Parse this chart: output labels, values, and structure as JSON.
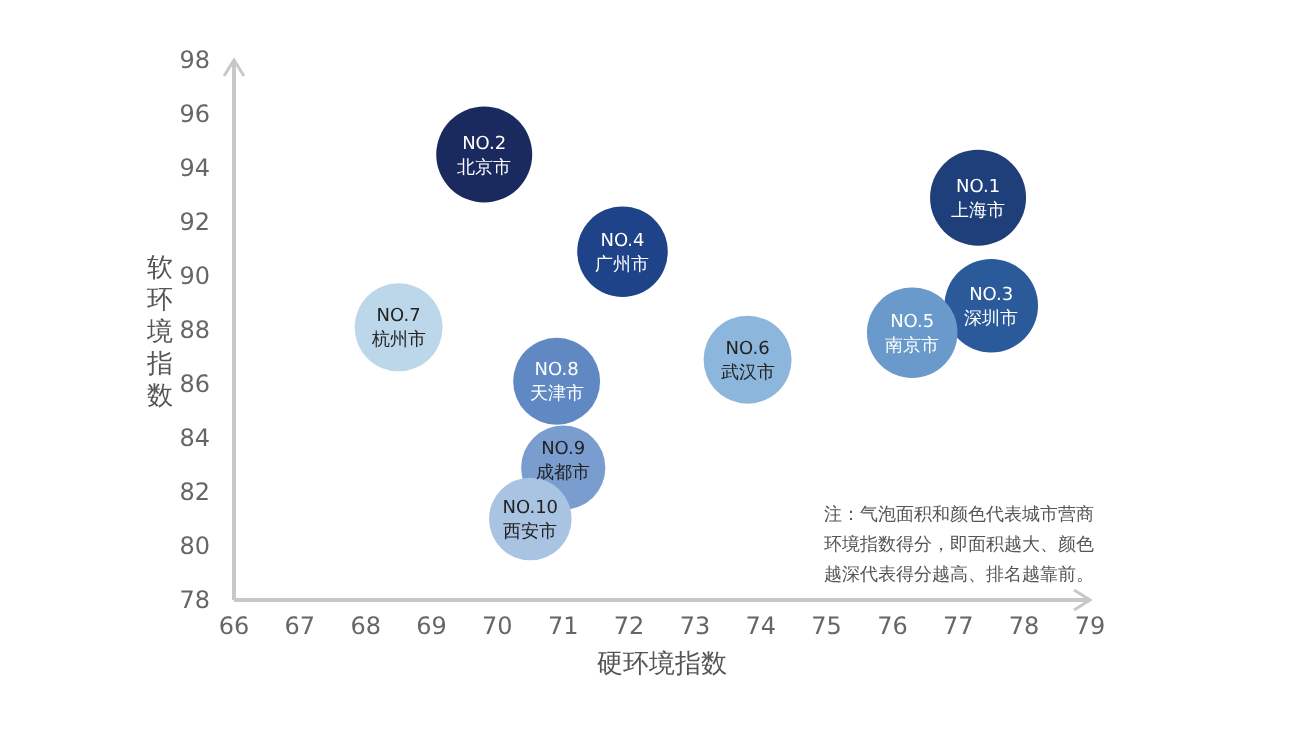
{
  "chart_data": {
    "type": "bubble",
    "xlabel": "硬环境指数",
    "ylabel": "软环境指数",
    "annotations": [
      "注：气泡面积和颜色代表城市营商环境指数得分，即面积越大、颜色越深代表得分越高、排名越靠前。"
    ],
    "xlim": [
      66,
      79
    ],
    "ylim": [
      78,
      98
    ],
    "xticks": [
      66,
      67,
      68,
      69,
      70,
      71,
      72,
      73,
      74,
      75,
      76,
      77,
      78,
      79
    ],
    "yticks": [
      78,
      80,
      82,
      84,
      86,
      88,
      90,
      92,
      94,
      96,
      98
    ],
    "grid": false,
    "x": [
      77.3,
      69.8,
      77.5,
      71.9,
      76.3,
      73.8,
      68.5,
      70.9,
      71.0,
      70.5
    ],
    "values": [
      92.9,
      94.5,
      88.9,
      90.9,
      87.9,
      86.9,
      88.1,
      86.1,
      82.9,
      81.0
    ],
    "sizes": [
      1,
      1,
      0.95,
      0.89,
      0.89,
      0.84,
      0.84,
      0.82,
      0.77,
      0.74
    ],
    "colors": [
      "#1f3f7a",
      "#1b2a5e",
      "#2a5a9a",
      "#1f4388",
      "#6a9acb",
      "#8cb6db",
      "#bcd6ea",
      "#6089c4",
      "#7a9dcf",
      "#a9c3e3"
    ],
    "value_labels": [
      "NO.1\n上海市",
      "NO.2\n北京市",
      "NO.3\n深圳市",
      "NO.4\n广州市",
      "NO.5\n南京市",
      "NO.6\n武汉市",
      "NO.7\n杭州市",
      "NO.8\n天津市",
      "NO.9\n成都市",
      "NO.10\n西安市"
    ]
  }
}
